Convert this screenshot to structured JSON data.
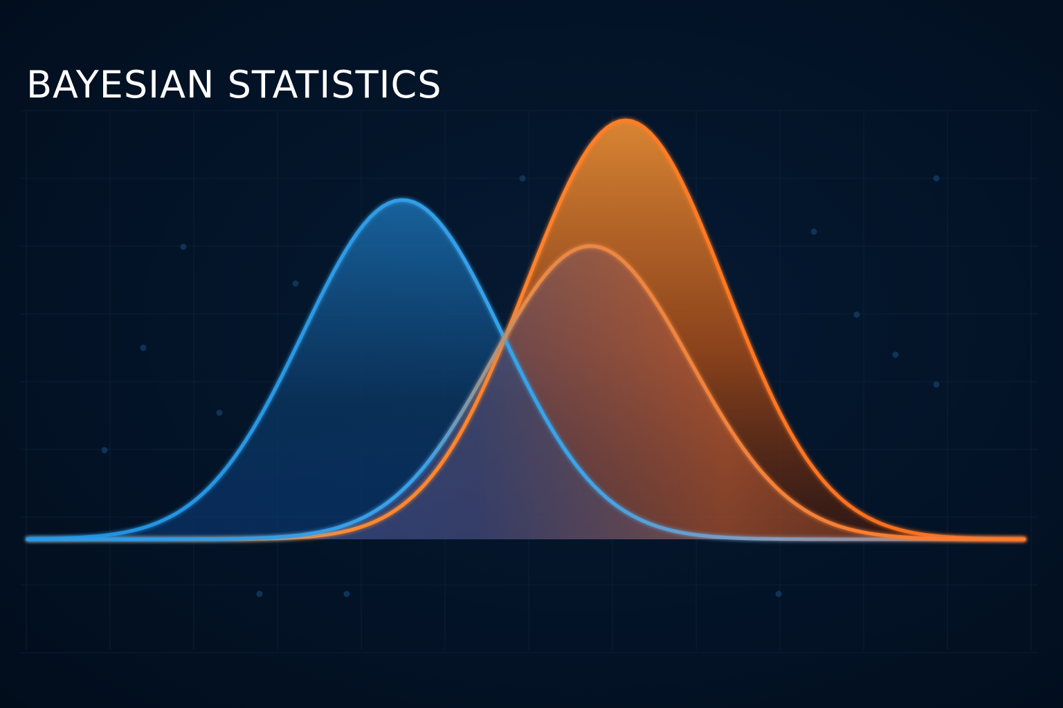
{
  "title": "BAYESIAN STATISTICS",
  "chart_data": {
    "type": "area",
    "title": "BAYESIAN STATISTICS",
    "xlabel": "",
    "ylabel": "",
    "xlim": [
      0,
      1
    ],
    "ylim": [
      0,
      1
    ],
    "grid": true,
    "legend": "none",
    "series": [
      {
        "key": "prior",
        "mean": 0.376,
        "sd": 0.1,
        "peak": 0.81,
        "color": "#1e90e0"
      },
      {
        "key": "likelihood",
        "mean": 0.565,
        "sd": 0.1,
        "peak": 0.7,
        "color": "#ff8a3a"
      },
      {
        "key": "posterior",
        "mean": 0.6,
        "sd": 0.1,
        "peak": 1.0,
        "color": "#f58a33"
      }
    ]
  },
  "colors": {
    "background": "#021022",
    "blue": "#1e90e0",
    "orange": "#ff7a2a",
    "grid": "#0d2238"
  }
}
